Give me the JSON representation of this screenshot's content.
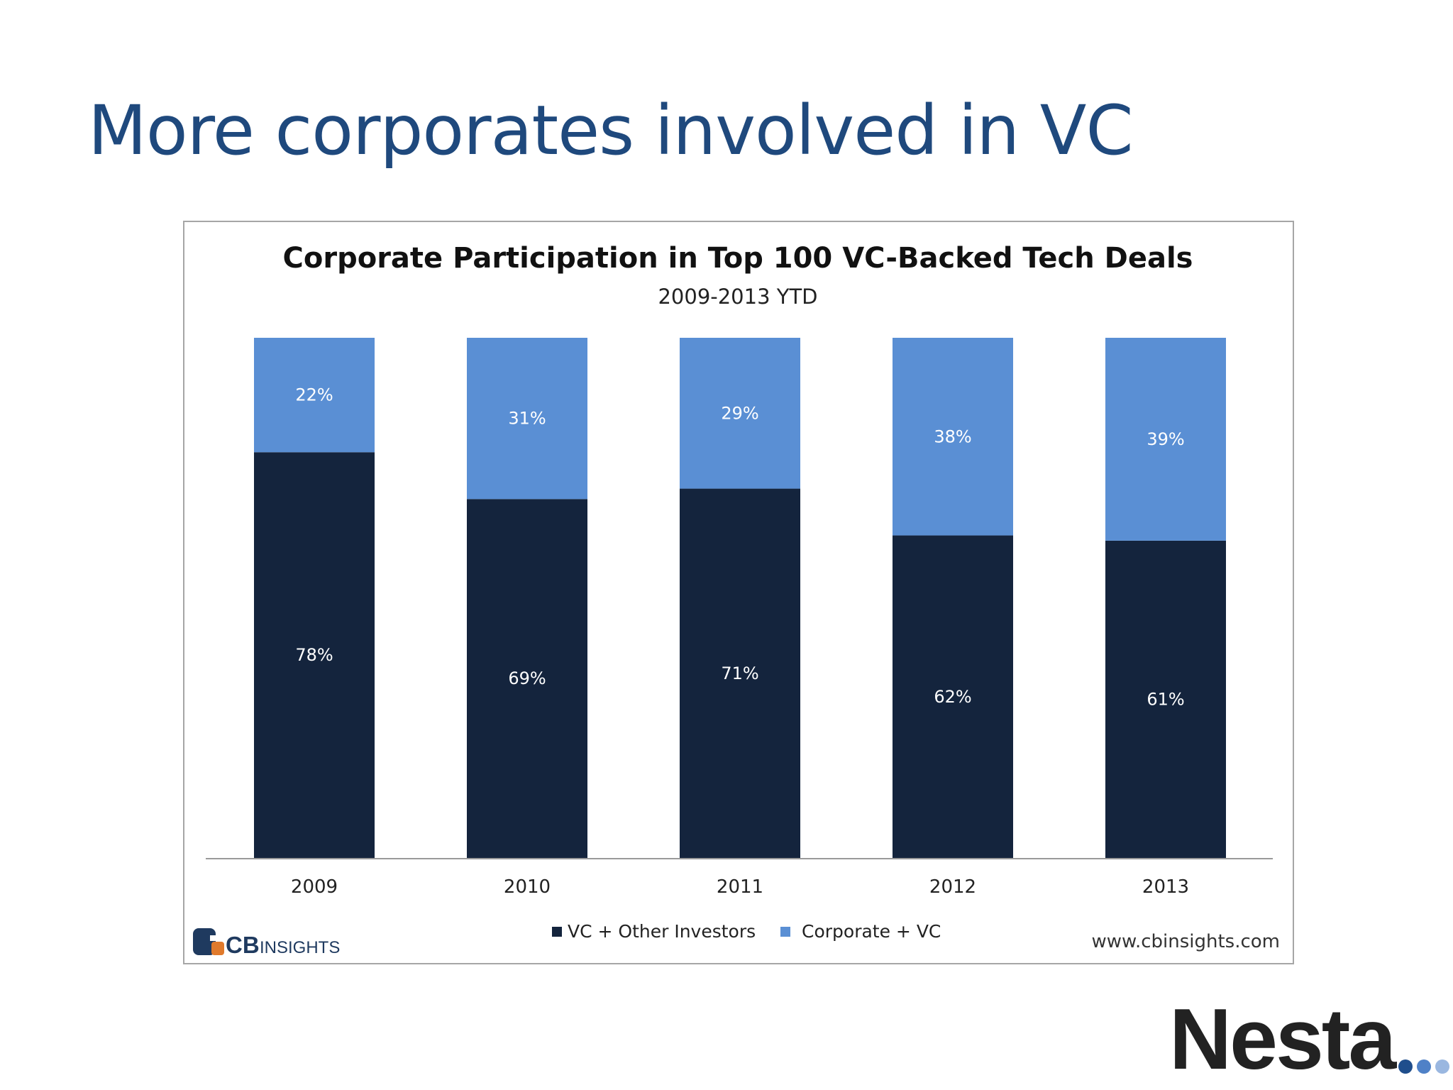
{
  "slide": {
    "title": "More corporates involved in VC"
  },
  "chart_data": {
    "type": "bar",
    "stacked": true,
    "title": "Corporate Participation  in Top 100 VC-Backed Tech Deals",
    "subtitle": "2009-2013 YTD",
    "categories": [
      "2009",
      "2010",
      "2011",
      "2012",
      "2013"
    ],
    "series": [
      {
        "name": "VC + Other Investors",
        "values": [
          78,
          69,
          71,
          62,
          61
        ],
        "labels": [
          "78%",
          "69%",
          "71%",
          "62%",
          "61%"
        ],
        "color": "#14243d"
      },
      {
        "name": "Corporate + VC",
        "values": [
          22,
          31,
          29,
          38,
          39
        ],
        "labels": [
          "22%",
          "31%",
          "29%",
          "38%",
          "39%"
        ],
        "color": "#5a8fd4"
      }
    ],
    "ylim": [
      0,
      100
    ],
    "grid": false,
    "legend_position": "bottom",
    "source": "www.cbinsights.com"
  },
  "logos": {
    "cb_prefix": "CB",
    "cb_suffix": "INSIGHTS",
    "nesta": "Nesta",
    "nesta_dot_colors": [
      "#1f4e8c",
      "#4f81c7",
      "#9ab7e0"
    ]
  }
}
